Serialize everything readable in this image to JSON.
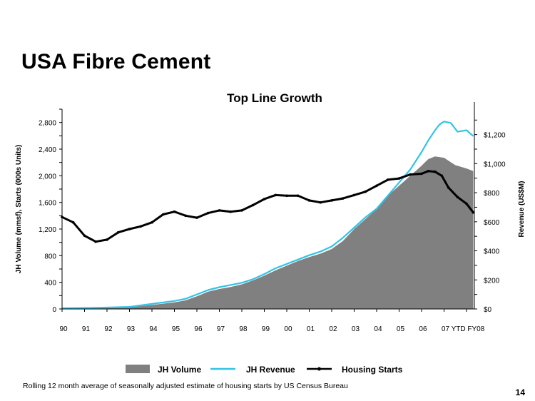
{
  "slide": {
    "title": "USA Fibre Cement",
    "footnote": "Rolling 12 month average of seasonally adjusted estimate of housing starts by US Census Bureau",
    "page_number": "14"
  },
  "chart_data": {
    "type": "area",
    "title": "Top Line Growth",
    "ylabel": "JH Volume (mmsf),  Starts (000s  Units)",
    "y2label": "Revenue (US$M)",
    "ylim": [
      0,
      3000
    ],
    "y2lim": [
      0,
      1375
    ],
    "x_ticks": [
      "90",
      "91",
      "92",
      "93",
      "94",
      "95",
      "96",
      "97",
      "98",
      "99",
      "00",
      "01",
      "02",
      "03",
      "04",
      "05",
      "06",
      "07",
      "YTD FY08"
    ],
    "y_ticks": [
      "0",
      "400",
      "800",
      "1,200",
      "1,600",
      "2,000",
      "2,400",
      "2,800"
    ],
    "y2_ticks": [
      "$0",
      "$200",
      "$400",
      "$600",
      "$800",
      "$1,000",
      "$1,200"
    ],
    "legend_position": "bottom",
    "colors": {
      "volume": "#808080",
      "revenue": "#33c3e6",
      "starts": "#000000"
    },
    "series": [
      {
        "name": "JH Volume",
        "axis": "left",
        "style": "area",
        "x": [
          1990,
          1991,
          1992,
          1993,
          1994,
          1995,
          1995.5,
          1996,
          1996.5,
          1997,
          1997.5,
          1998,
          1998.5,
          1999,
          1999.5,
          2000,
          2000.5,
          2001,
          2001.5,
          2002,
          2002.5,
          2003,
          2003.5,
          2004,
          2004.5,
          2005,
          2005.5,
          2006,
          2006.3,
          2006.6,
          2007,
          2007.5,
          2008,
          2008.3
        ],
        "values": [
          10,
          15,
          20,
          25,
          60,
          100,
          130,
          190,
          260,
          300,
          330,
          370,
          430,
          500,
          580,
          650,
          720,
          780,
          830,
          900,
          1020,
          1200,
          1350,
          1500,
          1700,
          1850,
          2000,
          2150,
          2250,
          2290,
          2270,
          2160,
          2110,
          2070
        ]
      },
      {
        "name": "JH Revenue",
        "axis": "right",
        "style": "line",
        "x": [
          1990,
          1991,
          1992,
          1993,
          1994,
          1995,
          1995.5,
          1996,
          1996.5,
          1997,
          1997.5,
          1998,
          1998.5,
          1999,
          1999.5,
          2000,
          2000.5,
          2001,
          2001.5,
          2002,
          2002.5,
          2003,
          2003.5,
          2004,
          2004.5,
          2005,
          2005.5,
          2006,
          2006.3,
          2006.6,
          2006.8,
          2007,
          2007.3,
          2007.6,
          2008,
          2008.3
        ],
        "values": [
          5,
          7,
          10,
          14,
          35,
          55,
          70,
          100,
          130,
          150,
          165,
          180,
          205,
          240,
          280,
          310,
          340,
          370,
          395,
          430,
          490,
          560,
          630,
          690,
          780,
          870,
          960,
          1080,
          1160,
          1230,
          1270,
          1290,
          1280,
          1220,
          1230,
          1190
        ]
      },
      {
        "name": "Housing Starts",
        "axis": "left",
        "style": "line-markers",
        "x": [
          1990,
          1990.5,
          1991,
          1991.5,
          1992,
          1992.5,
          1993,
          1993.5,
          1994,
          1994.5,
          1995,
          1995.5,
          1996,
          1996.5,
          1997,
          1997.5,
          1998,
          1998.5,
          1999,
          1999.5,
          2000,
          2000.5,
          2001,
          2001.5,
          2002,
          2002.5,
          2003,
          2003.5,
          2004,
          2004.5,
          2005,
          2005.5,
          2006,
          2006.3,
          2006.6,
          2006.9,
          2007.2,
          2007.6,
          2008,
          2008.3
        ],
        "values": [
          1380,
          1300,
          1100,
          1010,
          1040,
          1150,
          1200,
          1240,
          1300,
          1420,
          1460,
          1400,
          1370,
          1440,
          1480,
          1460,
          1480,
          1560,
          1650,
          1710,
          1700,
          1700,
          1630,
          1600,
          1630,
          1660,
          1710,
          1760,
          1850,
          1940,
          1960,
          2020,
          2030,
          2070,
          2060,
          2000,
          1820,
          1680,
          1580,
          1450
        ]
      }
    ]
  },
  "legend": {
    "items": [
      {
        "label": "JH Volume"
      },
      {
        "label": "JH Revenue"
      },
      {
        "label": "Housing Starts"
      }
    ]
  }
}
